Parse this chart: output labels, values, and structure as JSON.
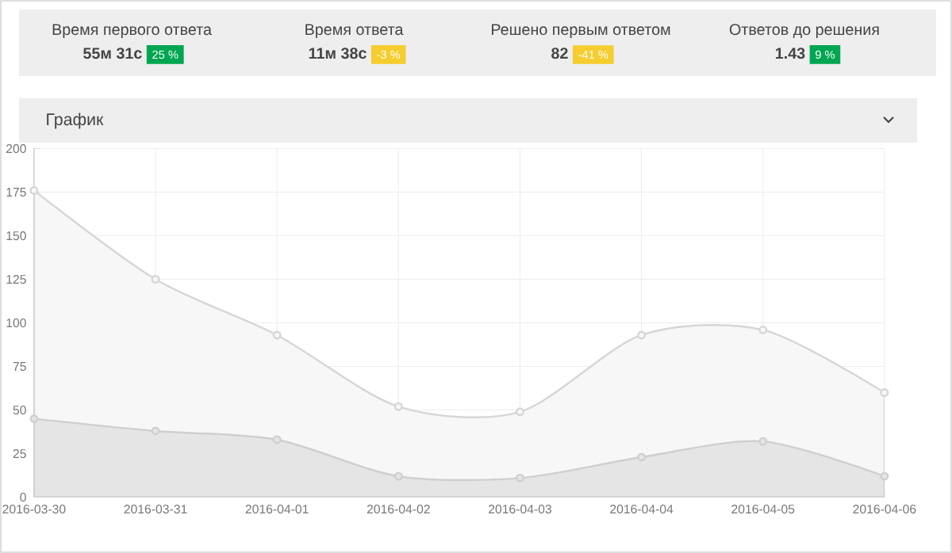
{
  "chart_data": [
    {
      "type": "other",
      "annotations": [
        "Время первого ответа",
        "55м 31с",
        "25 %",
        "Время ответа",
        "11м 38с",
        "-3 %",
        "Решено первым ответом",
        "82",
        "-41 %",
        "Ответов до решения",
        "1.43",
        "9 %"
      ],
      "colors": [
        "#00a651",
        "#f5cd2e",
        "#f5cd2e",
        "#00a651"
      ]
    },
    {
      "type": "area",
      "title": "График",
      "categories": [
        "2016-03-30",
        "2016-03-31",
        "2016-04-01",
        "2016-04-02",
        "2016-04-03",
        "2016-04-04",
        "2016-04-05",
        "2016-04-06"
      ],
      "series": [
        {
          "color": "#d6d6d6",
          "values": [
            176,
            125,
            93,
            52,
            49,
            93,
            96,
            60
          ]
        },
        {
          "color": "#cfcfcf",
          "values": [
            45,
            38,
            33,
            12,
            11,
            23,
            32,
            12
          ]
        }
      ],
      "ylim": [
        0,
        200
      ],
      "yticks": [
        0,
        25,
        50,
        75,
        100,
        125,
        150,
        175,
        200
      ],
      "grid": true,
      "marker": "circle"
    }
  ]
}
